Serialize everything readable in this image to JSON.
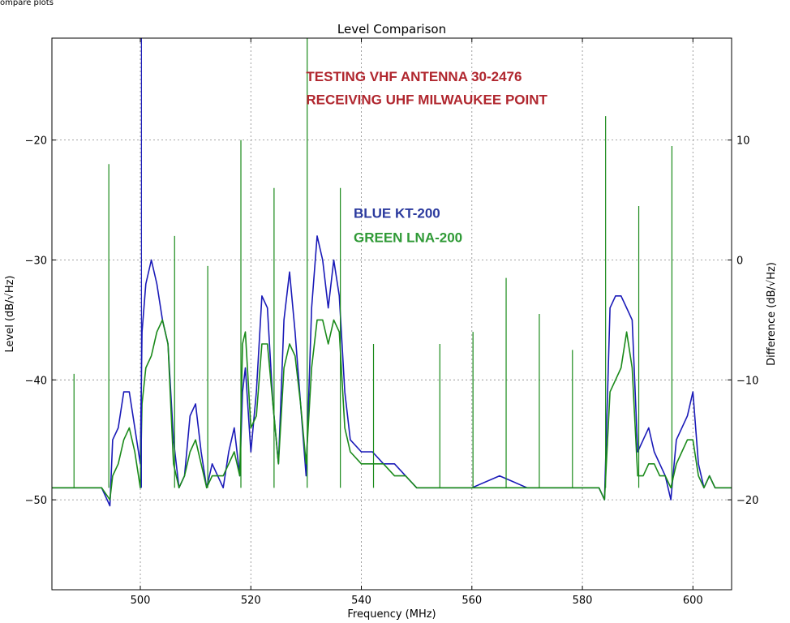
{
  "window": {
    "title": "ompare plots"
  },
  "chart_data": {
    "type": "line",
    "title": "Level Comparison",
    "xlabel": "Frequency (MHz)",
    "ylabel": "Level (dB/√Hz)",
    "y2label": "Difference (dB/√Hz)",
    "xlim": [
      484,
      607
    ],
    "ylim": [
      -57.5,
      -11.5
    ],
    "y2lim": [
      -27.5,
      18.5
    ],
    "xticks": [
      500,
      520,
      540,
      560,
      580,
      600
    ],
    "yticks": [
      -50,
      -40,
      -30,
      -20
    ],
    "y2ticks": [
      -20,
      -10,
      0,
      10
    ],
    "grid": true,
    "annotations": [
      {
        "text": "TESTING VHF ANTENNA 30-2476",
        "x": 530,
        "y": -15.1,
        "color": "#b0262e"
      },
      {
        "text": "RECEIVING UHF MILWAUKEE POINT",
        "x": 530,
        "y": -17.0,
        "color": "#b0262e"
      },
      {
        "text": "BLUE KT-200",
        "x": 538.6,
        "y": -26.5,
        "color": "#2b3a9e"
      },
      {
        "text": "GREEN LNA-200",
        "x": 538.6,
        "y": -28.5,
        "color": "#2f9a36"
      }
    ],
    "series": [
      {
        "color": "#1a1ab8",
        "x": [
          484,
          488,
          493,
          494.5,
          495,
          496,
          497,
          498,
          499,
          500,
          500.3,
          501,
          502,
          503,
          504,
          505,
          506,
          507,
          508,
          509,
          510,
          511,
          512,
          513,
          514,
          515,
          516,
          517,
          518,
          518.5,
          519,
          520,
          521,
          522,
          523,
          524,
          525,
          526,
          527,
          528,
          529,
          530,
          531,
          532,
          533,
          534,
          535,
          536,
          537,
          538,
          540,
          542,
          544,
          546,
          548,
          550,
          555,
          560,
          565,
          570,
          575,
          580,
          583,
          584,
          585,
          586,
          587,
          588,
          589,
          590,
          591,
          592,
          593,
          594,
          595,
          596,
          597,
          598,
          599,
          600,
          601,
          602,
          603,
          604,
          607
        ],
        "y": [
          -49,
          -49,
          -49,
          -50.5,
          -45,
          -44,
          -41,
          -41,
          -44,
          -47,
          -36,
          -32,
          -30,
          -32,
          -35,
          -37,
          -45,
          -49,
          -48,
          -43,
          -42,
          -46,
          -49,
          -47,
          -48,
          -49,
          -46,
          -44,
          -48,
          -41,
          -39,
          -46,
          -41,
          -33,
          -34,
          -42,
          -47,
          -35,
          -31,
          -36,
          -42,
          -48,
          -34,
          -28,
          -30,
          -34,
          -30,
          -33,
          -41,
          -45,
          -46,
          -46,
          -47,
          -47,
          -48,
          -49,
          -49,
          -49,
          -48,
          -49,
          -49,
          -49,
          -49,
          -50,
          -34,
          -33,
          -33,
          -34,
          -35,
          -46,
          -45,
          -44,
          -46,
          -47,
          -48,
          -50,
          -45,
          -44,
          -43,
          -41,
          -47,
          -49,
          -48,
          -49,
          -49
        ]
      },
      {
        "color": "#1a8a1a",
        "x": [
          484,
          488,
          493,
          494.5,
          495,
          496,
          497,
          498,
          499,
          500,
          500.3,
          501,
          502,
          503,
          504,
          505,
          506,
          507,
          508,
          509,
          510,
          511,
          512,
          513,
          514,
          515,
          516,
          517,
          518,
          518.5,
          519,
          520,
          521,
          522,
          523,
          524,
          525,
          526,
          527,
          528,
          529,
          530,
          531,
          532,
          533,
          534,
          535,
          536,
          537,
          538,
          540,
          542,
          544,
          546,
          548,
          550,
          555,
          560,
          565,
          570,
          575,
          580,
          583,
          584,
          585,
          586,
          587,
          588,
          589,
          590,
          591,
          592,
          593,
          594,
          595,
          596,
          597,
          598,
          599,
          600,
          601,
          602,
          603,
          604,
          607
        ],
        "y": [
          -49,
          -49,
          -49,
          -50,
          -48,
          -47,
          -45,
          -44,
          -46,
          -49,
          -42,
          -39,
          -38,
          -36,
          -35,
          -37,
          -47,
          -49,
          -48,
          -46,
          -45,
          -47,
          -49,
          -48,
          -48,
          -48,
          -47,
          -46,
          -48,
          -37,
          -36,
          -44,
          -43,
          -37,
          -37,
          -42,
          -47,
          -39,
          -37,
          -38,
          -42,
          -47,
          -39,
          -35,
          -35,
          -37,
          -35,
          -36,
          -44,
          -46,
          -47,
          -47,
          -47,
          -48,
          -48,
          -49,
          -49,
          -49,
          -49,
          -49,
          -49,
          -49,
          -49,
          -50,
          -41,
          -40,
          -39,
          -36,
          -39,
          -48,
          -48,
          -47,
          -47,
          -48,
          -48,
          -49,
          -47,
          -46,
          -45,
          -45,
          -48,
          -49,
          -48,
          -49,
          -49
        ]
      }
    ],
    "spikes": [
      {
        "x": 488,
        "y": -39.5,
        "color": "#1a8a1a"
      },
      {
        "x": 494.3,
        "y": -22,
        "color": "#1a8a1a"
      },
      {
        "x": 500.2,
        "y": -11.5,
        "color": "#1a1ab8"
      },
      {
        "x": 506.2,
        "y": -28,
        "color": "#1a8a1a"
      },
      {
        "x": 512.2,
        "y": -30.5,
        "color": "#1a8a1a"
      },
      {
        "x": 518.2,
        "y": -20,
        "color": "#1a8a1a"
      },
      {
        "x": 524.2,
        "y": -24,
        "color": "#1a8a1a"
      },
      {
        "x": 530.2,
        "y": -11.5,
        "color": "#1a8a1a"
      },
      {
        "x": 536.2,
        "y": -24,
        "color": "#1a8a1a"
      },
      {
        "x": 542.2,
        "y": -37,
        "color": "#1a8a1a"
      },
      {
        "x": 554.2,
        "y": -37,
        "color": "#1a8a1a"
      },
      {
        "x": 560.2,
        "y": -36,
        "color": "#1a8a1a"
      },
      {
        "x": 566.2,
        "y": -31.5,
        "color": "#1a8a1a"
      },
      {
        "x": 572.2,
        "y": -34.5,
        "color": "#1a8a1a"
      },
      {
        "x": 578.2,
        "y": -37.5,
        "color": "#1a8a1a"
      },
      {
        "x": 584.2,
        "y": -18,
        "color": "#1a8a1a"
      },
      {
        "x": 590.2,
        "y": -25.5,
        "color": "#1a8a1a"
      },
      {
        "x": 596.2,
        "y": -20.5,
        "color": "#1a8a1a"
      }
    ]
  }
}
